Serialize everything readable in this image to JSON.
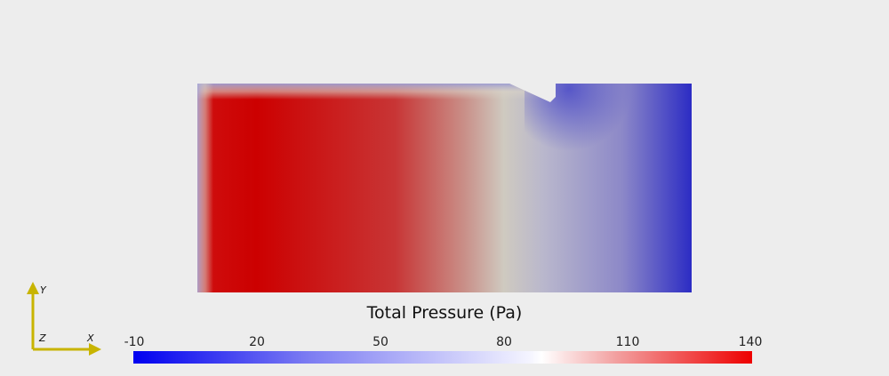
{
  "scene": {
    "colorbar_title": "Total Pressure (Pa)",
    "colorbar_ticks": [
      "-10",
      "20",
      "50",
      "80",
      "110",
      "140"
    ],
    "colorbar_range": [
      -10,
      140
    ],
    "colormap_colors": {
      "low": "#0000f0",
      "mid": "#ffffff",
      "high": "#ee0000"
    }
  },
  "axes_triad": {
    "labels": [
      "Y",
      "Z",
      "X"
    ],
    "color": "#c8b400"
  }
}
